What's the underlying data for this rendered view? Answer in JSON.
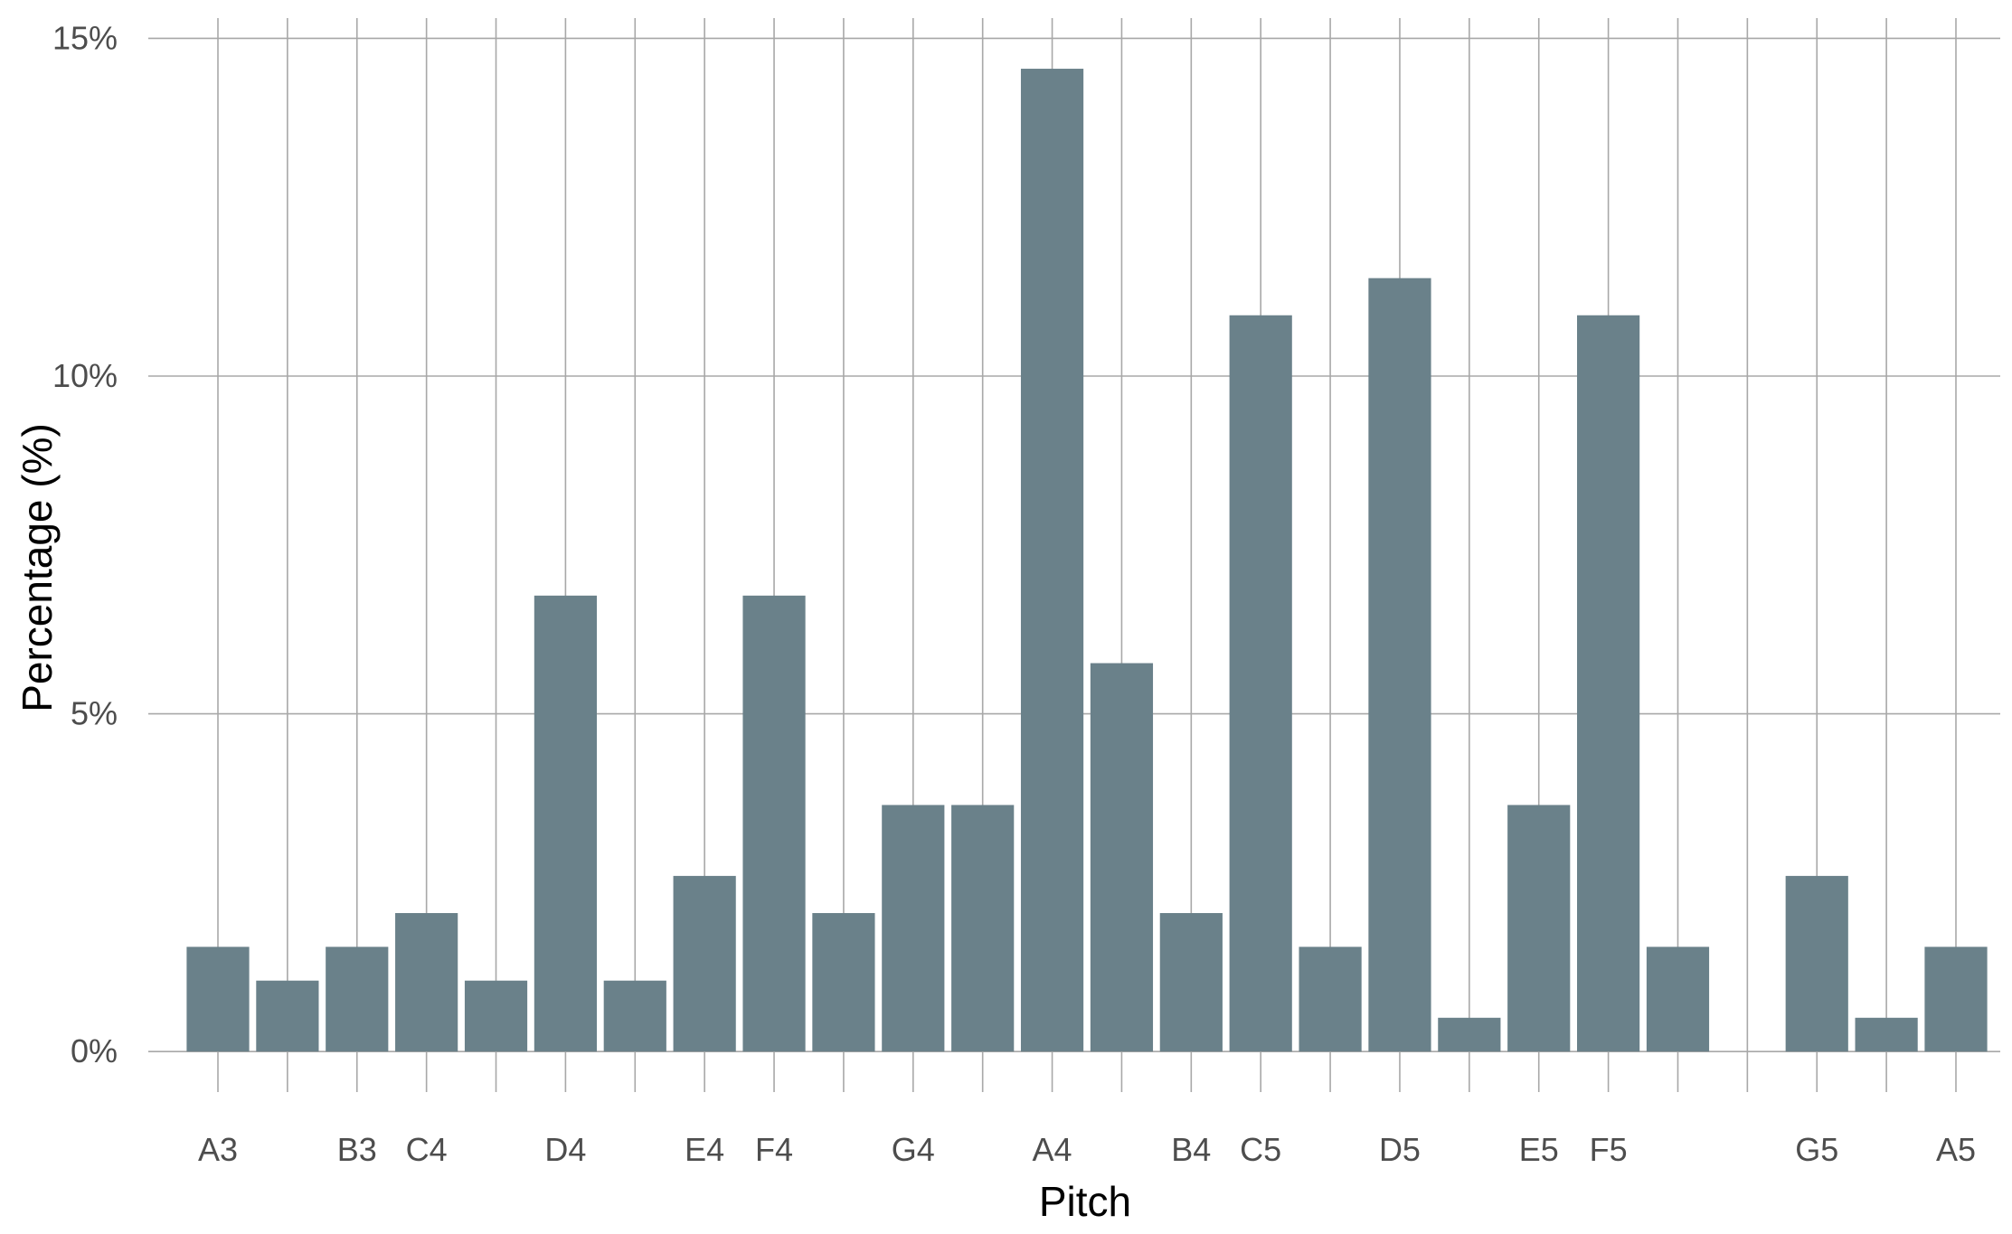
{
  "chart_data": {
    "type": "bar",
    "title": "",
    "xlabel": "Pitch",
    "ylabel": "Percentage (%)",
    "categories": [
      "A3",
      "",
      "B3",
      "C4",
      "",
      "D4",
      "",
      "E4",
      "F4",
      "",
      "G4",
      "",
      "A4",
      "",
      "B4",
      "C5",
      "",
      "D5",
      "",
      "E5",
      "F5",
      "",
      "",
      "G5",
      "",
      "A5"
    ],
    "values": [
      1.55,
      1.05,
      1.55,
      2.05,
      1.05,
      6.75,
      1.05,
      2.6,
      6.75,
      2.05,
      3.65,
      3.65,
      14.55,
      5.75,
      2.05,
      10.9,
      1.55,
      11.45,
      0.5,
      3.65,
      10.9,
      1.55,
      0,
      2.6,
      0.5,
      1.55
    ],
    "ylim": [
      -0.6,
      15.3
    ],
    "yticks": [
      0,
      5,
      10,
      15
    ],
    "ytick_labels": [
      "0%",
      "5%",
      "10%",
      "15%"
    ],
    "grid": true,
    "bar_color": "#6a818a",
    "grid_color": "#a8a8a8"
  }
}
